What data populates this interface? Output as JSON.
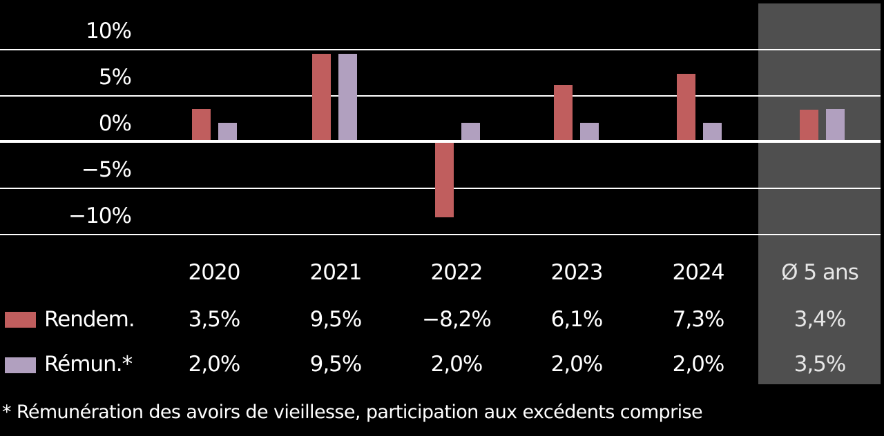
{
  "colors": {
    "background": "#000000",
    "rendem": "#c05e5e",
    "remun": "#b1a0bf",
    "avg_panel": "#4f4f4f",
    "grid": "#ffffff"
  },
  "axis": {
    "ticks": [
      "10%",
      "5%",
      "0%",
      "−5%",
      "−10%"
    ]
  },
  "table": {
    "columns": [
      "2020",
      "2021",
      "2022",
      "2023",
      "2024",
      "Ø 5 ans"
    ],
    "rows": [
      {
        "label": "Rendem.",
        "values": [
          "3,5%",
          "9,5%",
          "−8,2%",
          "6,1%",
          "7,3%",
          "3,4%"
        ]
      },
      {
        "label": "Rémun.*",
        "values": [
          "2,0%",
          "9,5%",
          "2,0%",
          "2,0%",
          "2,0%",
          "3,5%"
        ]
      }
    ]
  },
  "footnote": "* Rémunération des avoirs de vieillesse, participation aux excédents comprise",
  "chart_data": {
    "type": "bar",
    "title": "",
    "categories": [
      "2020",
      "2021",
      "2022",
      "2023",
      "2024",
      "Ø 5 ans"
    ],
    "series": [
      {
        "name": "Rendem.",
        "color": "#c05e5e",
        "values": [
          3.5,
          9.5,
          -8.2,
          6.1,
          7.3,
          3.4
        ]
      },
      {
        "name": "Rémun.*",
        "color": "#b1a0bf",
        "values": [
          2.0,
          9.5,
          2.0,
          2.0,
          2.0,
          3.5
        ]
      }
    ],
    "xlabel": "",
    "ylabel": "",
    "ylim": [
      -10,
      10
    ],
    "yticks": [
      10,
      5,
      0,
      -5,
      -10
    ],
    "ytick_labels": [
      "10%",
      "5%",
      "0%",
      "−5%",
      "−10%"
    ],
    "grid": true,
    "legend_position": "bottom-left (as table row labels)",
    "highlighted_category": "Ø 5 ans",
    "footnote": "* Rémunération des avoirs de vieillesse, participation aux excédents comprise"
  }
}
